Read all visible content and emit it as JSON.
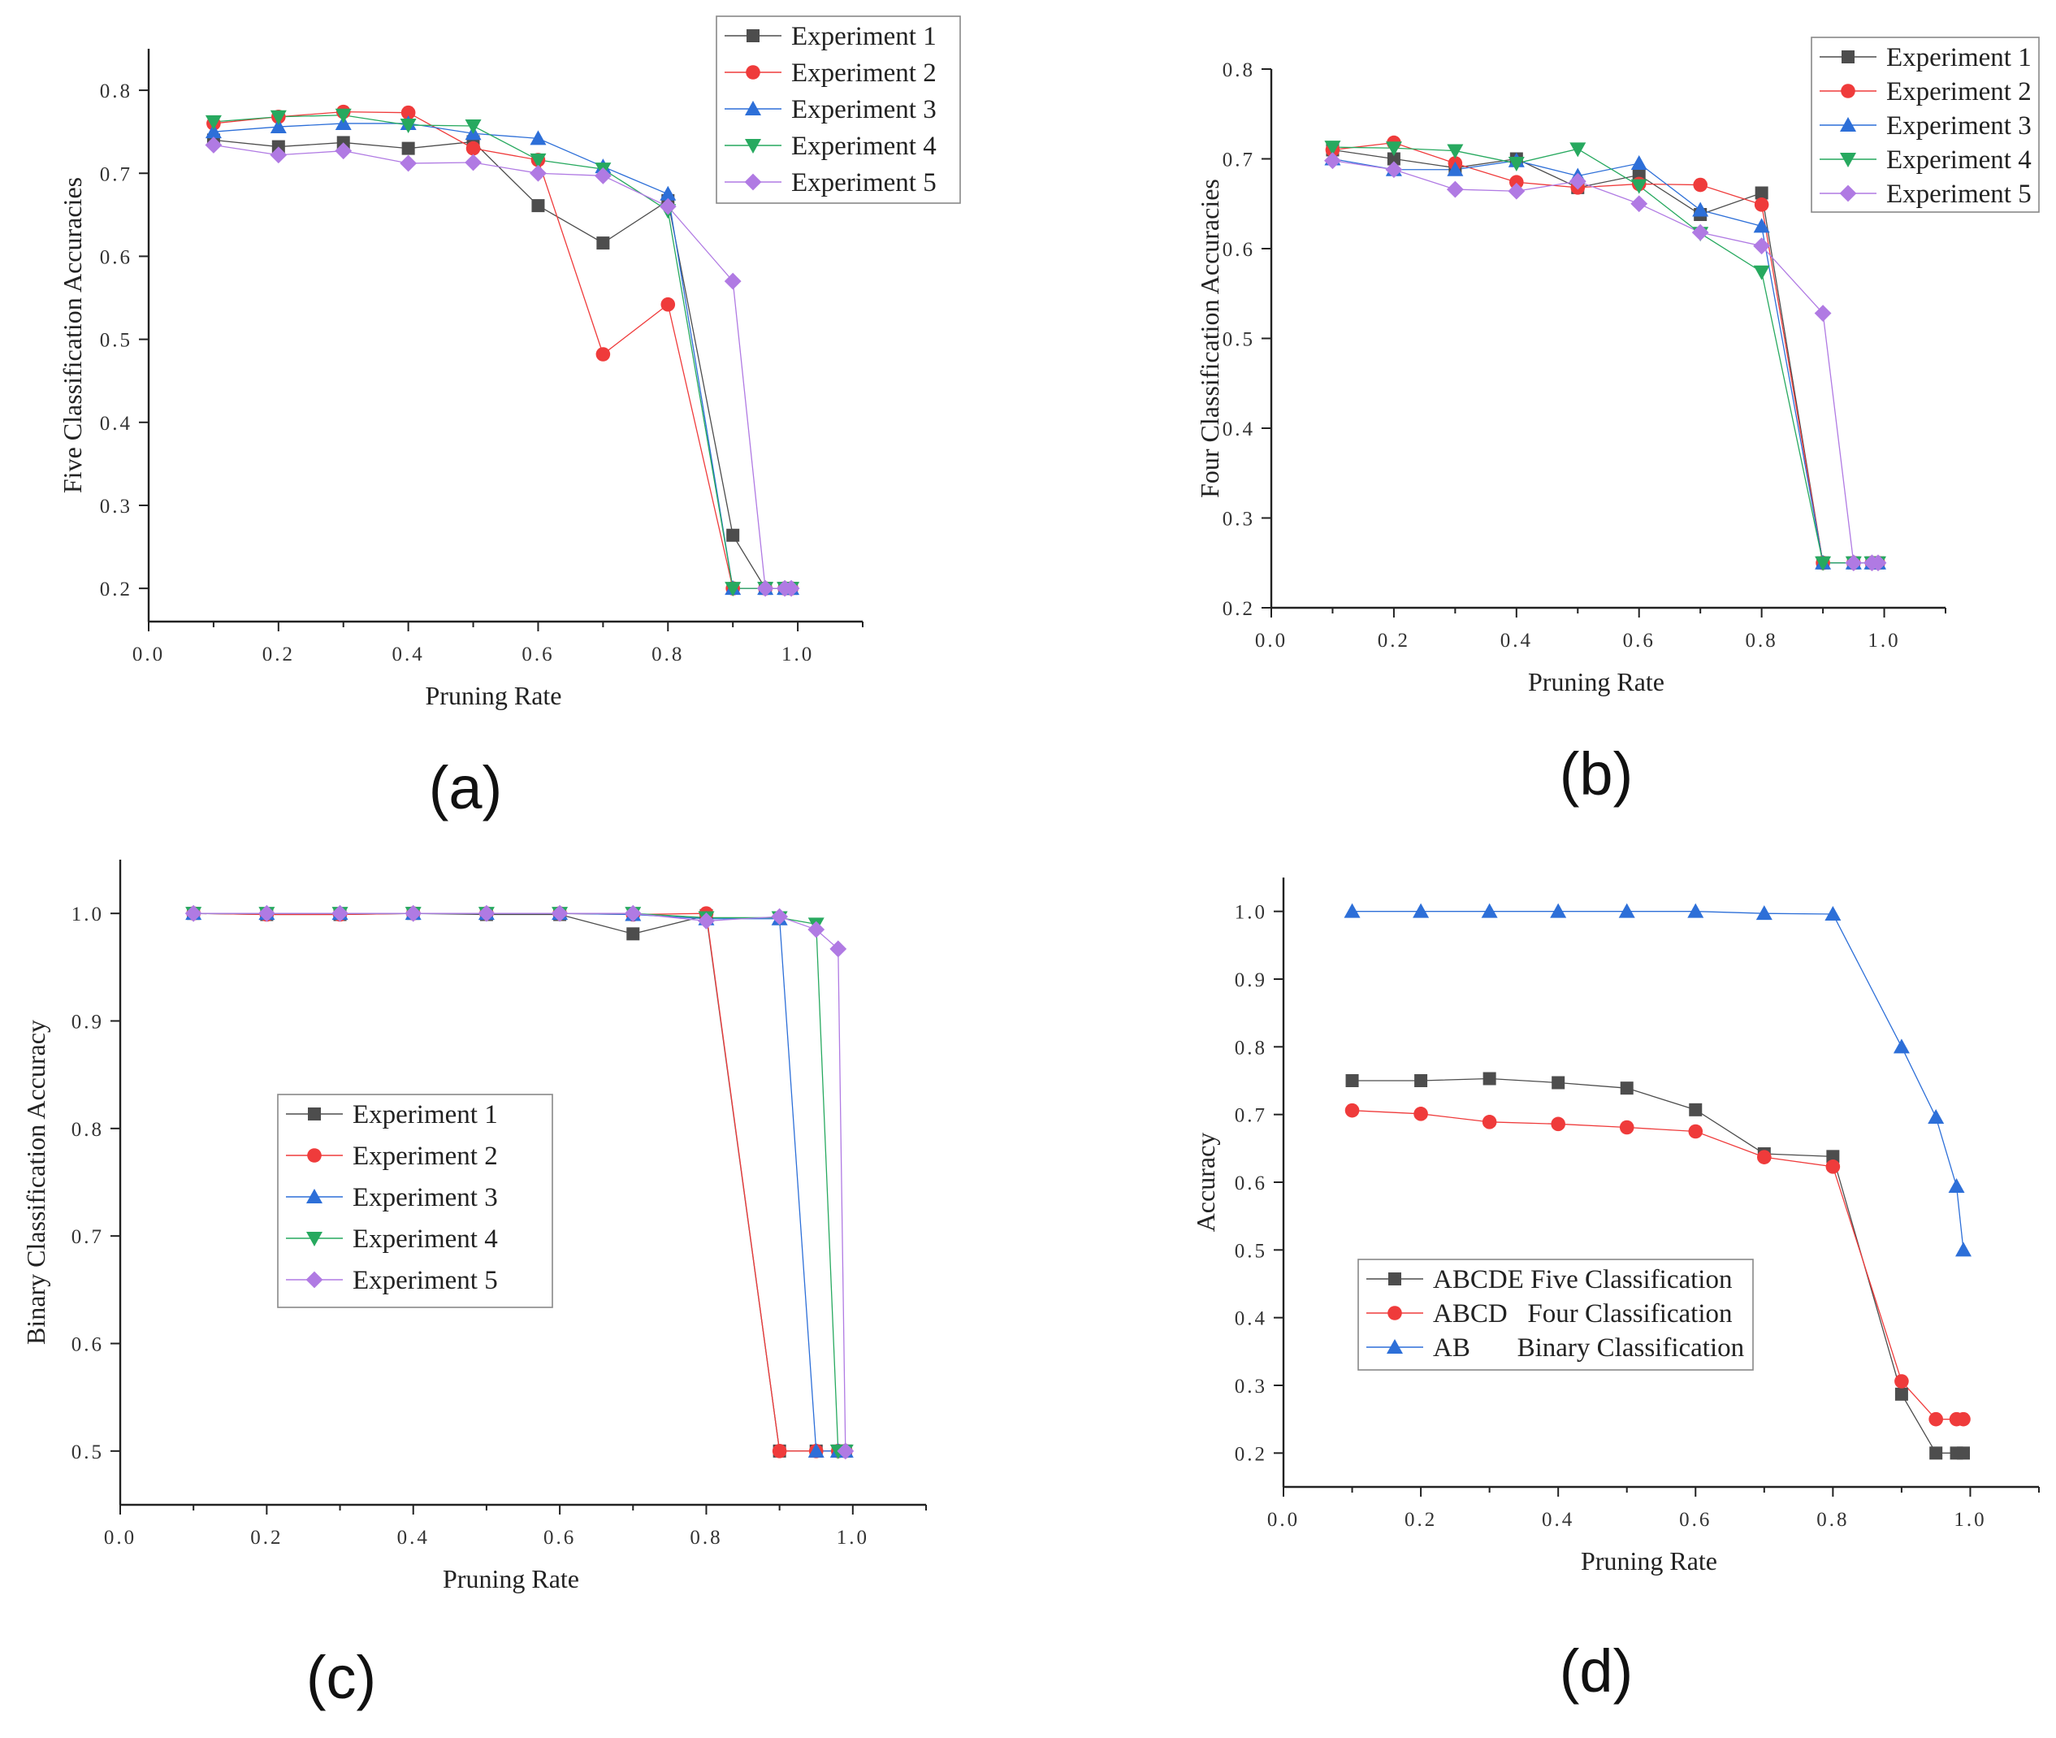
{
  "colors": {
    "Experiment 1": "#4d4d4d",
    "Experiment 2": "#ef3b3b",
    "Experiment 3": "#2d6fd8",
    "Experiment 4": "#27a95f",
    "Experiment 5": "#b07ae3",
    "ABCDE Five Classification": "#4d4d4d",
    "ABCD   Four Classification": "#ef3b3b",
    "AB       Binary Classification": "#2d6fd8"
  },
  "chart_data": [
    {
      "id": "a",
      "type": "line",
      "panel_label": "(a)",
      "xlabel": "Pruning Rate",
      "ylabel": "Five Classification Accuracies",
      "xlim": [
        0,
        1.1
      ],
      "ylim": [
        0.16,
        0.85
      ],
      "xticks": [
        0,
        0.2,
        0.4,
        0.6,
        0.8,
        1.0
      ],
      "xtick_labels": [
        "0.0",
        "0.2",
        "0.4",
        "0.6",
        "0.8",
        "1.0"
      ],
      "yticks": [
        0.2,
        0.3,
        0.4,
        0.5,
        0.6,
        0.7,
        0.8
      ],
      "ytick_labels": [
        "0.2",
        "0.3",
        "0.4",
        "0.5",
        "0.6",
        "0.7",
        "0.8"
      ],
      "legend": [
        "Experiment 1",
        "Experiment 2",
        "Experiment 3",
        "Experiment 4",
        "Experiment 5"
      ],
      "legend_position": "top-right",
      "series": [
        {
          "name": "Experiment 1",
          "marker": "square",
          "x": [
            0.1,
            0.2,
            0.3,
            0.4,
            0.5,
            0.6,
            0.7,
            0.8,
            0.9,
            0.95,
            0.98,
            0.99
          ],
          "values": [
            0.74,
            0.732,
            0.737,
            0.73,
            0.738,
            0.661,
            0.616,
            0.667,
            0.264,
            0.2,
            0.2,
            0.2
          ]
        },
        {
          "name": "Experiment 2",
          "marker": "circle",
          "x": [
            0.1,
            0.2,
            0.3,
            0.4,
            0.5,
            0.6,
            0.7,
            0.8,
            0.9,
            0.95,
            0.98,
            0.99
          ],
          "values": [
            0.76,
            0.768,
            0.774,
            0.773,
            0.73,
            0.716,
            0.482,
            0.542,
            0.2,
            0.2,
            0.2,
            0.2
          ]
        },
        {
          "name": "Experiment 3",
          "marker": "triangle-up",
          "x": [
            0.1,
            0.2,
            0.3,
            0.4,
            0.5,
            0.6,
            0.7,
            0.8,
            0.9,
            0.95,
            0.98,
            0.99
          ],
          "values": [
            0.75,
            0.756,
            0.76,
            0.76,
            0.748,
            0.742,
            0.708,
            0.675,
            0.2,
            0.2,
            0.2,
            0.2
          ]
        },
        {
          "name": "Experiment 4",
          "marker": "triangle-down",
          "x": [
            0.1,
            0.2,
            0.3,
            0.4,
            0.5,
            0.6,
            0.7,
            0.8,
            0.9,
            0.95,
            0.98,
            0.99
          ],
          "values": [
            0.762,
            0.768,
            0.77,
            0.758,
            0.757,
            0.716,
            0.705,
            0.655,
            0.2,
            0.2,
            0.2,
            0.2
          ]
        },
        {
          "name": "Experiment 5",
          "marker": "diamond",
          "x": [
            0.1,
            0.2,
            0.3,
            0.4,
            0.5,
            0.6,
            0.7,
            0.8,
            0.9,
            0.95,
            0.98,
            0.99
          ],
          "values": [
            0.734,
            0.722,
            0.727,
            0.712,
            0.713,
            0.7,
            0.697,
            0.66,
            0.57,
            0.2,
            0.2,
            0.2
          ]
        }
      ]
    },
    {
      "id": "b",
      "type": "line",
      "panel_label": "(b)",
      "xlabel": "Pruning Rate",
      "ylabel": "Four Classification Accuracies",
      "xlim": [
        0,
        1.1
      ],
      "ylim": [
        0.2,
        0.8
      ],
      "xticks": [
        0,
        0.2,
        0.4,
        0.6,
        0.8,
        1.0
      ],
      "xtick_labels": [
        "0.0",
        "0.2",
        "0.4",
        "0.6",
        "0.8",
        "1.0"
      ],
      "yticks": [
        0.2,
        0.3,
        0.4,
        0.5,
        0.6,
        0.7,
        0.8
      ],
      "ytick_labels": [
        "0.2",
        "0.3",
        "0.4",
        "0.5",
        "0.6",
        "0.7",
        "0.8"
      ],
      "legend": [
        "Experiment 1",
        "Experiment 2",
        "Experiment 3",
        "Experiment 4",
        "Experiment 5"
      ],
      "legend_position": "top-right",
      "series": [
        {
          "name": "Experiment 1",
          "marker": "square",
          "x": [
            0.1,
            0.2,
            0.3,
            0.4,
            0.5,
            0.6,
            0.7,
            0.8,
            0.9,
            0.95,
            0.98,
            0.99
          ],
          "values": [
            0.71,
            0.7,
            0.69,
            0.7,
            0.668,
            0.682,
            0.638,
            0.662,
            0.25,
            0.25,
            0.25,
            0.25
          ]
        },
        {
          "name": "Experiment 2",
          "marker": "circle",
          "x": [
            0.1,
            0.2,
            0.3,
            0.4,
            0.5,
            0.6,
            0.7,
            0.8,
            0.9,
            0.95,
            0.98,
            0.99
          ],
          "values": [
            0.71,
            0.718,
            0.695,
            0.674,
            0.668,
            0.672,
            0.671,
            0.649,
            0.25,
            0.25,
            0.25,
            0.25
          ]
        },
        {
          "name": "Experiment 3",
          "marker": "triangle-up",
          "x": [
            0.1,
            0.2,
            0.3,
            0.4,
            0.5,
            0.6,
            0.7,
            0.8,
            0.9,
            0.95,
            0.98,
            0.99
          ],
          "values": [
            0.7,
            0.688,
            0.688,
            0.698,
            0.681,
            0.695,
            0.643,
            0.625,
            0.25,
            0.25,
            0.25,
            0.25
          ]
        },
        {
          "name": "Experiment 4",
          "marker": "triangle-down",
          "x": [
            0.1,
            0.2,
            0.3,
            0.4,
            0.5,
            0.6,
            0.7,
            0.8,
            0.9,
            0.95,
            0.98,
            0.99
          ],
          "values": [
            0.713,
            0.712,
            0.709,
            0.695,
            0.711,
            0.67,
            0.617,
            0.574,
            0.25,
            0.25,
            0.25,
            0.25
          ]
        },
        {
          "name": "Experiment 5",
          "marker": "diamond",
          "x": [
            0.1,
            0.2,
            0.3,
            0.4,
            0.5,
            0.6,
            0.7,
            0.8,
            0.9,
            0.95,
            0.98,
            0.99
          ],
          "values": [
            0.698,
            0.688,
            0.666,
            0.664,
            0.675,
            0.65,
            0.618,
            0.603,
            0.528,
            0.25,
            0.25,
            0.25
          ]
        }
      ]
    },
    {
      "id": "c",
      "type": "line",
      "panel_label": "(c)",
      "xlabel": "Pruning Rate",
      "ylabel": "Binary Classification Accuracy",
      "xlim": [
        0,
        1.1
      ],
      "ylim": [
        0.45,
        1.05
      ],
      "xticks": [
        0,
        0.2,
        0.4,
        0.6,
        0.8,
        1.0
      ],
      "xtick_labels": [
        "0.0",
        "0.2",
        "0.4",
        "0.6",
        "0.8",
        "1.0"
      ],
      "yticks": [
        0.5,
        0.6,
        0.7,
        0.8,
        0.9,
        1.0
      ],
      "ytick_labels": [
        "0.5",
        "0.6",
        "0.7",
        "0.8",
        "0.9",
        "1.0"
      ],
      "legend": [
        "Experiment 1",
        "Experiment 2",
        "Experiment 3",
        "Experiment 4",
        "Experiment 5"
      ],
      "legend_position": "center-left",
      "series": [
        {
          "name": "Experiment 1",
          "marker": "square",
          "x": [
            0.1,
            0.2,
            0.3,
            0.4,
            0.5,
            0.6,
            0.7,
            0.8,
            0.9,
            0.95,
            0.98,
            0.99
          ],
          "values": [
            1.0,
            0.999,
            0.999,
            1.0,
            0.999,
            0.999,
            0.981,
            0.998,
            0.5,
            0.5,
            0.5,
            0.5
          ]
        },
        {
          "name": "Experiment 2",
          "marker": "circle",
          "x": [
            0.1,
            0.2,
            0.3,
            0.4,
            0.5,
            0.6,
            0.7,
            0.8,
            0.9,
            0.95,
            0.98,
            0.99
          ],
          "values": [
            1.0,
            0.999,
            0.999,
            1.0,
            1.0,
            1.0,
            0.999,
            1.0,
            0.5,
            0.5,
            0.5,
            0.5
          ]
        },
        {
          "name": "Experiment 3",
          "marker": "triangle-up",
          "x": [
            0.1,
            0.2,
            0.3,
            0.4,
            0.5,
            0.6,
            0.7,
            0.8,
            0.9,
            0.95,
            0.98,
            0.99
          ],
          "values": [
            1.0,
            1.0,
            1.0,
            1.0,
            1.0,
            1.0,
            0.999,
            0.995,
            0.995,
            0.5,
            0.5,
            0.5
          ]
        },
        {
          "name": "Experiment 4",
          "marker": "triangle-down",
          "x": [
            0.1,
            0.2,
            0.3,
            0.4,
            0.5,
            0.6,
            0.7,
            0.8,
            0.9,
            0.95,
            0.98,
            0.99
          ],
          "values": [
            1.0,
            1.0,
            1.0,
            1.0,
            1.0,
            1.0,
            1.0,
            0.996,
            0.996,
            0.99,
            0.5,
            0.5
          ]
        },
        {
          "name": "Experiment 5",
          "marker": "diamond",
          "x": [
            0.1,
            0.2,
            0.3,
            0.4,
            0.5,
            0.6,
            0.7,
            0.8,
            0.9,
            0.95,
            0.98,
            0.99
          ],
          "values": [
            1.0,
            1.0,
            1.0,
            1.0,
            1.0,
            1.0,
            1.0,
            0.993,
            0.997,
            0.985,
            0.967,
            0.5
          ]
        }
      ]
    },
    {
      "id": "d",
      "type": "line",
      "panel_label": "(d)",
      "xlabel": "Pruning Rate",
      "ylabel": "Accuracy",
      "xlim": [
        0,
        1.1
      ],
      "ylim": [
        0.15,
        1.05
      ],
      "xticks": [
        0,
        0.2,
        0.4,
        0.6,
        0.8,
        1.0
      ],
      "xtick_labels": [
        "0.0",
        "0.2",
        "0.4",
        "0.6",
        "0.8",
        "1.0"
      ],
      "yticks": [
        0.2,
        0.3,
        0.4,
        0.5,
        0.6,
        0.7,
        0.8,
        0.9,
        1.0
      ],
      "ytick_labels": [
        "0.2",
        "0.3",
        "0.4",
        "0.5",
        "0.6",
        "0.7",
        "0.8",
        "0.9",
        "1.0"
      ],
      "legend": [
        "ABCDE Five Classification",
        "ABCD   Four Classification",
        "AB       Binary Classification"
      ],
      "legend_position": "center",
      "series": [
        {
          "name": "ABCDE Five Classification",
          "marker": "square",
          "x": [
            0.1,
            0.2,
            0.3,
            0.4,
            0.5,
            0.6,
            0.7,
            0.8,
            0.9,
            0.95,
            0.98,
            0.99
          ],
          "values": [
            0.75,
            0.75,
            0.753,
            0.747,
            0.739,
            0.707,
            0.642,
            0.638,
            0.287,
            0.2,
            0.2,
            0.2
          ]
        },
        {
          "name": "ABCD   Four Classification",
          "marker": "circle",
          "x": [
            0.1,
            0.2,
            0.3,
            0.4,
            0.5,
            0.6,
            0.7,
            0.8,
            0.9,
            0.95,
            0.98,
            0.99
          ],
          "values": [
            0.706,
            0.701,
            0.689,
            0.686,
            0.681,
            0.675,
            0.637,
            0.623,
            0.306,
            0.25,
            0.25,
            0.25
          ]
        },
        {
          "name": "AB       Binary Classification",
          "marker": "triangle-up",
          "x": [
            0.1,
            0.2,
            0.3,
            0.4,
            0.5,
            0.6,
            0.7,
            0.8,
            0.9,
            0.95,
            0.98,
            0.99
          ],
          "values": [
            1.0,
            1.0,
            1.0,
            1.0,
            1.0,
            1.0,
            0.997,
            0.996,
            0.8,
            0.696,
            0.594,
            0.5
          ]
        }
      ]
    }
  ]
}
